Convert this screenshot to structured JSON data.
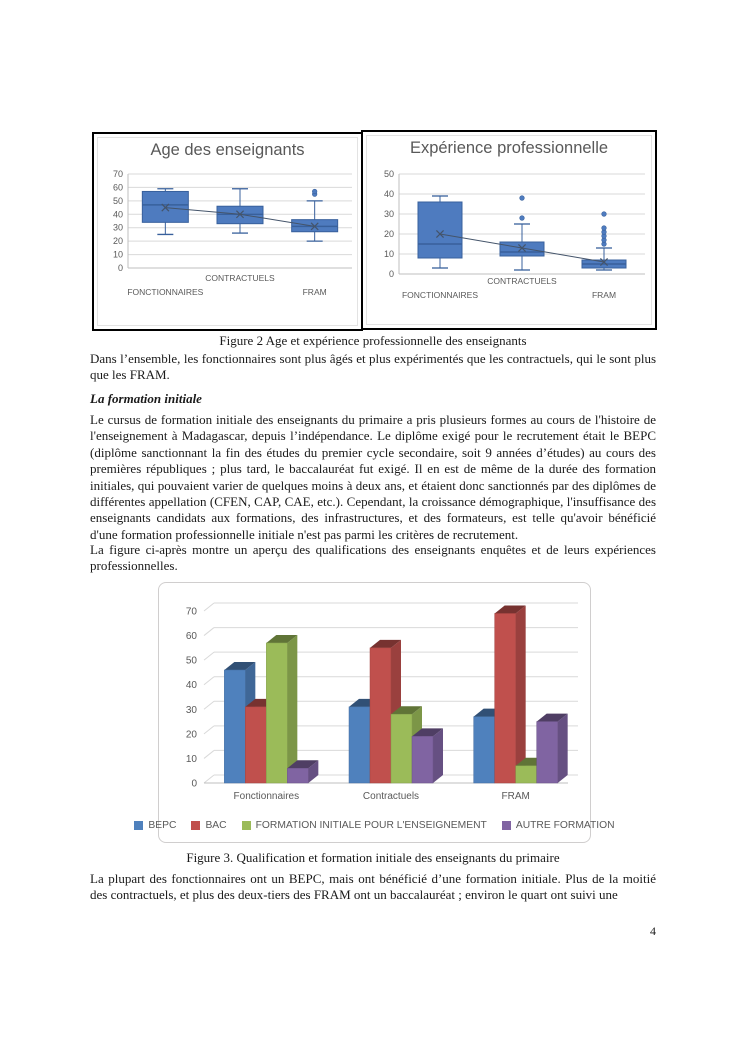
{
  "page_number": "4",
  "figures": {
    "fig2_caption": "Figure 2 Age et expérience professionnelle des enseignants",
    "fig3_caption": "Figure 3. Qualification et formation initiale des enseignants du primaire"
  },
  "text": {
    "para1": "Dans l’ensemble, les fonctionnaires sont plus âgés et plus expérimentés que les contractuels, qui le sont plus que les FRAM.",
    "heading1": "La formation initiale",
    "para2": "Le cursus de formation initiale des enseignants du primaire a pris plusieurs formes au cours de l'histoire de l'enseignement à Madagascar, depuis l’indépendance. Le diplôme exigé pour le recrutement était le BEPC (diplôme sanctionnant la fin des études du premier cycle secondaire, soit 9 années d’études) au cours des premières républiques ; plus tard, le baccalauréat fut exigé. Il en est de même de la durée des formation initiales, qui pouvaient varier de quelques moins à deux ans, et étaient donc sanctionnés par des diplômes de différentes appellation (CFEN, CAP, CAE, etc.). Cependant, la croissance démographique, l'insuffisance des enseignants candidats aux formations, des infrastructures, et des formateurs, est telle qu'avoir bénéficié d'une formation professionnelle initiale n'est pas parmi les critères de recrutement.",
    "para3": "La figure ci-après montre un aperçu des qualifications des enseignants enquêtes et de leurs expériences professionnelles.",
    "para4": "La plupart des fonctionnaires ont un BEPC, mais ont bénéficié d’une formation initiale. Plus de la moitié des contractuels, et plus des deux-tiers des FRAM ont un baccalauréat ; environ le quart ont suivi une"
  },
  "chart_data": [
    {
      "type": "boxplot",
      "title": "Age des enseignants",
      "categories": [
        "FONCTIONNAIRES",
        "CONTRACTUELS",
        "FRAM"
      ],
      "ylim": [
        0,
        70
      ],
      "yticks": [
        0,
        10,
        20,
        30,
        40,
        50,
        60,
        70
      ],
      "grid": true,
      "boxes": [
        {
          "category": "FONCTIONNAIRES",
          "whisker_low": 25,
          "q1": 34,
          "median": 47,
          "q3": 57,
          "whisker_high": 59,
          "mean": 45,
          "outliers": []
        },
        {
          "category": "CONTRACTUELS",
          "whisker_low": 26,
          "q1": 33,
          "median": 40,
          "q3": 46,
          "whisker_high": 59,
          "mean": 40,
          "outliers": []
        },
        {
          "category": "FRAM",
          "whisker_low": 20,
          "q1": 27,
          "median": 31,
          "q3": 36,
          "whisker_high": 50,
          "mean": 31,
          "outliers": [
            55,
            57
          ]
        }
      ],
      "mean_line": [
        45,
        40,
        31
      ],
      "colors": {
        "box_fill": "#4E7BBF",
        "box_border": "#38609C",
        "mean_line": "#44546A",
        "grid": "#D9D9D9",
        "axis": "#BFBFBF",
        "label": "#595959"
      }
    },
    {
      "type": "boxplot",
      "title": "Expérience professionnelle",
      "categories": [
        "FONCTIONNAIRES",
        "CONTRACTUELS",
        "FRAM"
      ],
      "ylim": [
        0,
        50
      ],
      "yticks": [
        0,
        10,
        20,
        30,
        40,
        50
      ],
      "grid": true,
      "boxes": [
        {
          "category": "FONCTIONNAIRES",
          "whisker_low": 3,
          "q1": 8,
          "median": 15,
          "q3": 36,
          "whisker_high": 39,
          "mean": 20,
          "outliers": []
        },
        {
          "category": "CONTRACTUELS",
          "whisker_low": 2,
          "q1": 9,
          "median": 11,
          "q3": 16,
          "whisker_high": 25,
          "mean": 13,
          "outliers": [
            28,
            38
          ]
        },
        {
          "category": "FRAM",
          "whisker_low": 2,
          "q1": 3,
          "median": 5,
          "q3": 7,
          "whisker_high": 13,
          "mean": 6,
          "outliers": [
            15,
            17,
            19,
            21,
            23,
            30
          ]
        }
      ],
      "mean_line": [
        20,
        13,
        6
      ],
      "colors": {
        "box_fill": "#4E7BBF",
        "box_border": "#38609C",
        "mean_line": "#44546A",
        "grid": "#D9D9D9",
        "axis": "#BFBFBF",
        "label": "#595959"
      }
    },
    {
      "type": "bar",
      "style": "3d-clustered",
      "title": "",
      "categories": [
        "Fonctionnaires",
        "Contractuels",
        "FRAM"
      ],
      "series": [
        {
          "name": "BEPC",
          "color": "#4F81BD",
          "values": [
            46,
            31,
            27
          ]
        },
        {
          "name": "BAC",
          "color": "#C0504D",
          "values": [
            31,
            55,
            69
          ]
        },
        {
          "name": "FORMATION INITIALE POUR L'ENSEIGNEMENT",
          "color": "#9BBB59",
          "values": [
            57,
            28,
            7
          ]
        },
        {
          "name": "AUTRE FORMATION",
          "color": "#8064A2",
          "values": [
            6,
            19,
            25
          ]
        }
      ],
      "ylim": [
        0,
        70
      ],
      "yticks": [
        0,
        10,
        20,
        30,
        40,
        50,
        60,
        70
      ],
      "grid": true,
      "legend_position": "bottom",
      "colors": {
        "grid": "#D9D9D9",
        "axis": "#BFBFBF",
        "label": "#595959"
      }
    }
  ]
}
